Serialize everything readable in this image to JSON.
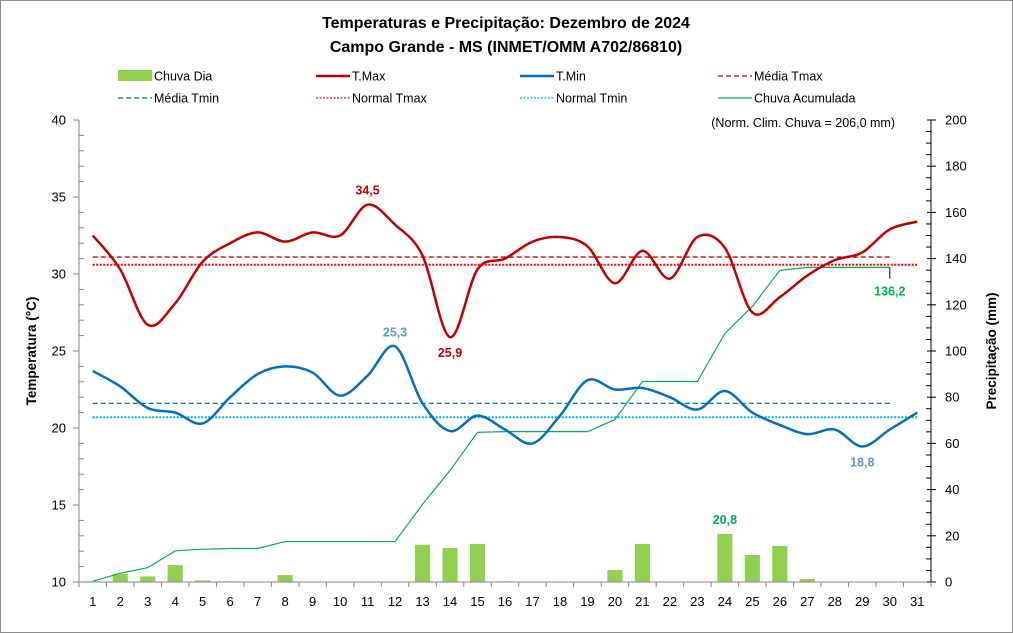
{
  "chart_data": {
    "type": "bar+line",
    "title": "Temperaturas e Precipitação: Dezembro de 2024",
    "subtitle": "Campo Grande - MS (INMET/OMM A702/86810)",
    "note": "(Norm. Clim. Chuva = 206,0 mm)",
    "xlabel": "",
    "ylabel_left": "Temperatura (°C)",
    "ylabel_right": "Precipitação (mm)",
    "ylim_left": [
      10,
      40
    ],
    "yticks_left": [
      10,
      15,
      20,
      25,
      30,
      35,
      40
    ],
    "ylim_right": [
      0,
      200
    ],
    "yticks_right": [
      0,
      20,
      40,
      60,
      80,
      100,
      120,
      140,
      160,
      180,
      200
    ],
    "x": [
      1,
      2,
      3,
      4,
      5,
      6,
      7,
      8,
      9,
      10,
      11,
      12,
      13,
      14,
      15,
      16,
      17,
      18,
      19,
      20,
      21,
      22,
      23,
      24,
      25,
      26,
      27,
      28,
      29,
      30,
      31
    ],
    "legend_position": "top",
    "legend": [
      {
        "key": "chuva_dia",
        "label": "Chuva Dia",
        "color": "#92d050",
        "style": "bar"
      },
      {
        "key": "tmax",
        "label": "T.Max",
        "color": "#c00000",
        "style": "solid"
      },
      {
        "key": "tmin",
        "label": "T.Min",
        "color": "#0070c0",
        "style": "solid"
      },
      {
        "key": "media_tmax",
        "label": "Média Tmax",
        "color": "#c00000",
        "style": "dashed"
      },
      {
        "key": "media_tmin",
        "label": "Média Tmin",
        "color": "#0070c0",
        "style": "dashed"
      },
      {
        "key": "normal_tmax",
        "label": "Normal Tmax",
        "color": "#ff0000",
        "style": "dotted"
      },
      {
        "key": "normal_tmin",
        "label": "Normal Tmin",
        "color": "#00b0f0",
        "style": "dotted"
      },
      {
        "key": "chuva_acum",
        "label": "Chuva Acumulada",
        "color": "#00b050",
        "style": "solid-thin"
      }
    ],
    "series": [
      {
        "name": "T.Max",
        "key": "tmax",
        "axis": "left",
        "values": [
          32.5,
          30.3,
          26.7,
          28.1,
          30.8,
          32.0,
          32.7,
          32.1,
          32.7,
          32.5,
          34.5,
          33.2,
          31.2,
          25.9,
          30.3,
          31.0,
          32.1,
          32.4,
          31.8,
          29.4,
          31.5,
          29.7,
          32.4,
          31.7,
          27.5,
          28.5,
          29.9,
          30.9,
          31.4,
          32.9,
          33.4
        ]
      },
      {
        "name": "T.Min",
        "key": "tmin",
        "axis": "left",
        "values": [
          23.7,
          22.7,
          21.3,
          21.0,
          20.3,
          22.0,
          23.5,
          24.0,
          23.6,
          22.1,
          23.4,
          25.3,
          21.6,
          19.8,
          20.8,
          19.9,
          19.0,
          20.8,
          23.1,
          22.5,
          22.6,
          22.0,
          21.2,
          22.4,
          21.0,
          20.2,
          19.6,
          19.9,
          18.8,
          19.9,
          21.0
        ]
      },
      {
        "name": "Chuva Dia",
        "key": "chuva_dia",
        "axis": "right",
        "values": [
          0.3,
          3.5,
          2.4,
          7.3,
          0.7,
          0.3,
          0,
          3.0,
          0,
          0,
          0,
          0,
          16.1,
          14.7,
          16.5,
          0.3,
          0,
          0,
          0,
          5.2,
          16.5,
          0,
          0,
          20.8,
          11.7,
          15.6,
          1.3,
          0,
          0,
          0,
          0
        ]
      },
      {
        "name": "Chuva Acumulada",
        "key": "chuva_acum",
        "axis": "right",
        "until_day": 30,
        "values": [
          0.3,
          3.8,
          6.2,
          13.5,
          14.2,
          14.5,
          14.5,
          17.5,
          17.5,
          17.5,
          17.5,
          17.5,
          33.6,
          48.3,
          64.8,
          65.1,
          65.1,
          65.1,
          65.1,
          70.3,
          86.8,
          86.8,
          86.8,
          107.6,
          119.3,
          134.9,
          136.2,
          136.2,
          136.2,
          136.2
        ]
      },
      {
        "name": "Média Tmax",
        "key": "media_tmax",
        "axis": "left",
        "value": 31.1,
        "until_day": 30
      },
      {
        "name": "Média Tmin",
        "key": "media_tmin",
        "axis": "left",
        "value": 21.6,
        "until_day": 30
      },
      {
        "name": "Normal Tmax",
        "key": "normal_tmax",
        "axis": "left",
        "value": 30.6
      },
      {
        "name": "Normal Tmin",
        "key": "normal_tmin",
        "axis": "left",
        "value": 20.7
      }
    ],
    "annotations": [
      {
        "text": "34,5",
        "series": "tmax",
        "day": 11,
        "position": "above",
        "color": "#c00000"
      },
      {
        "text": "25,9",
        "series": "tmax",
        "day": 14,
        "position": "below",
        "color": "#c00000"
      },
      {
        "text": "25,3",
        "series": "tmin",
        "day": 12,
        "position": "above",
        "color": "#5b9bd5"
      },
      {
        "text": "18,8",
        "series": "tmin",
        "day": 29,
        "position": "below",
        "color": "#5b9bd5"
      },
      {
        "text": "20,8",
        "series": "chuva_dia",
        "day": 24,
        "position": "above",
        "color": "#00b050"
      },
      {
        "text": "136,2",
        "series": "chuva_acum",
        "day": 30,
        "position": "below",
        "color": "#00b050"
      }
    ],
    "grid": false
  }
}
